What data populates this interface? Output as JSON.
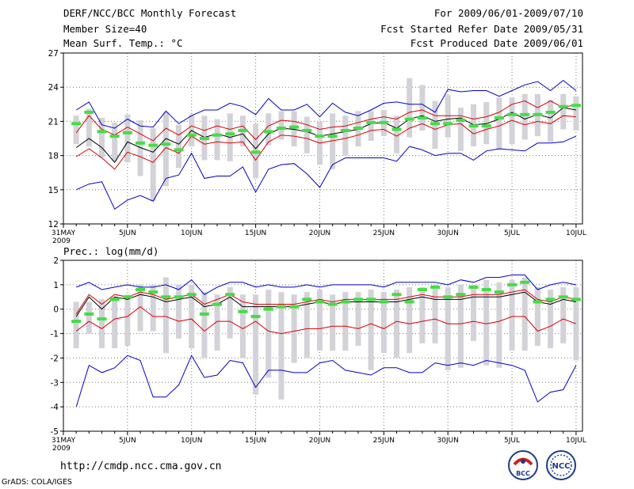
{
  "header": {
    "title": "DERF/NCC/BCC Monthly Forecast",
    "member_size": "Member Size=40",
    "variable": "Mean Surf. Temp.: °C",
    "period": "For 2009/06/01-2009/07/10",
    "started": "Fcst Started Refer Date 2009/05/31",
    "produced": "Fcst Produced Date 2009/06/01"
  },
  "footer": {
    "url": "http://cmdp.ncc.cma.gov.cn",
    "credit": "GrADS: COLA/IGES",
    "logo_bcc": "BCC",
    "logo_ncc": "NCC"
  },
  "colors": {
    "max_min_line": "#0000cc",
    "spread_line": "#dd0000",
    "mean_line": "#000000",
    "median_marker": "#44dd44",
    "box": "#d2d2d8",
    "grid": "#777777"
  },
  "chart_data": [
    {
      "type": "line",
      "title": "Mean Surf. Temp.: °C",
      "xlabel": "",
      "ylabel": "",
      "ylim": [
        12,
        27
      ],
      "yticks": [
        "12",
        "15",
        "18",
        "21",
        "24",
        "27"
      ],
      "yticks_values": [
        12,
        15,
        18,
        21,
        24,
        27
      ],
      "xtick_labels": [
        "31MAY",
        "5JUN",
        "10JUN",
        "15JUN",
        "20JUN",
        "25JUN",
        "30JUN",
        "5JUL",
        "10JUL"
      ],
      "xtick_days": [
        0,
        5,
        10,
        15,
        20,
        25,
        30,
        35,
        40
      ],
      "year_label": "2009",
      "grid": true,
      "x": [
        1,
        2,
        3,
        4,
        5,
        6,
        7,
        8,
        9,
        10,
        11,
        12,
        13,
        14,
        15,
        16,
        17,
        18,
        19,
        20,
        21,
        22,
        23,
        24,
        25,
        26,
        27,
        28,
        29,
        30,
        31,
        32,
        33,
        34,
        35,
        36,
        37,
        38,
        39,
        40
      ],
      "series": [
        {
          "name": "max",
          "values": [
            22.0,
            22.7,
            20.7,
            20.4,
            21.2,
            20.6,
            20.5,
            21.9,
            20.8,
            21.5,
            22.0,
            22.0,
            22.6,
            22.3,
            21.6,
            23.0,
            22.0,
            22.0,
            22.5,
            21.4,
            22.6,
            21.8,
            21.5,
            22.0,
            22.6,
            22.7,
            22.5,
            22.5,
            21.8,
            23.8,
            23.6,
            23.7,
            23.7,
            23.2,
            23.7,
            24.2,
            24.5,
            23.7,
            24.6,
            23.7
          ]
        },
        {
          "name": "upper",
          "values": [
            20.0,
            21.5,
            20.3,
            19.8,
            20.5,
            19.9,
            19.3,
            20.4,
            19.8,
            20.6,
            20.2,
            20.6,
            20.3,
            20.6,
            19.4,
            20.6,
            21.1,
            21.0,
            20.7,
            20.3,
            20.5,
            20.6,
            20.9,
            21.2,
            21.4,
            21.2,
            21.8,
            22.0,
            21.5,
            21.5,
            21.5,
            21.2,
            21.4,
            21.8,
            22.5,
            22.8,
            22.2,
            22.8,
            22.2,
            22.5
          ]
        },
        {
          "name": "mean",
          "values": [
            18.7,
            19.5,
            18.7,
            17.4,
            19.2,
            18.7,
            18.3,
            19.5,
            19.0,
            20.2,
            19.6,
            19.9,
            19.6,
            19.9,
            18.6,
            19.9,
            20.4,
            20.3,
            20.1,
            19.7,
            19.9,
            20.1,
            20.3,
            20.8,
            20.9,
            20.4,
            21.2,
            21.5,
            21.0,
            21.2,
            21.3,
            20.7,
            20.8,
            21.2,
            21.8,
            21.2,
            21.6,
            21.3,
            22.2,
            22.0
          ]
        },
        {
          "name": "lower",
          "values": [
            17.9,
            18.6,
            17.8,
            16.8,
            18.3,
            17.9,
            17.4,
            18.7,
            18.2,
            19.7,
            19.0,
            19.2,
            19.1,
            19.2,
            17.6,
            19.2,
            19.8,
            19.7,
            19.5,
            19.1,
            19.3,
            19.5,
            19.8,
            20.2,
            20.3,
            19.7,
            20.4,
            20.8,
            20.3,
            20.7,
            20.8,
            19.9,
            20.3,
            20.6,
            21.1,
            20.7,
            21.0,
            20.8,
            21.5,
            21.4
          ]
        },
        {
          "name": "min",
          "values": [
            15.0,
            15.5,
            15.7,
            13.3,
            14.1,
            14.5,
            14.0,
            16.0,
            16.3,
            18.2,
            16.0,
            16.2,
            16.2,
            17.0,
            14.8,
            16.8,
            17.2,
            17.3,
            16.4,
            15.2,
            17.2,
            17.8,
            17.8,
            17.8,
            17.8,
            17.5,
            18.8,
            18.5,
            18.0,
            18.2,
            18.2,
            17.6,
            18.4,
            18.6,
            18.5,
            18.4,
            19.1,
            19.1,
            19.2,
            19.7
          ]
        },
        {
          "name": "box_high",
          "values": [
            21.5,
            22.1,
            21.3,
            20.9,
            21.6,
            21.1,
            20.4,
            21.8,
            20.7,
            21.6,
            21.5,
            21.2,
            21.7,
            21.5,
            20.8,
            21.7,
            21.9,
            21.9,
            21.4,
            21.0,
            21.7,
            21.5,
            21.9,
            21.9,
            22.0,
            21.5,
            24.8,
            24.2,
            22.8,
            23.3,
            22.2,
            22.5,
            22.7,
            23.1,
            23.1,
            23.4,
            23.4,
            22.9,
            23.4,
            23.2
          ]
        },
        {
          "name": "box_low",
          "values": [
            19.0,
            18.8,
            17.8,
            17.5,
            17.4,
            16.2,
            14.0,
            15.3,
            16.9,
            18.8,
            17.6,
            17.6,
            17.5,
            18.8,
            16.0,
            18.9,
            19.4,
            18.8,
            18.2,
            17.2,
            16.8,
            18.0,
            18.8,
            19.3,
            19.7,
            18.2,
            19.6,
            20.2,
            18.6,
            19.6,
            18.4,
            18.8,
            19.0,
            18.5,
            19.0,
            19.4,
            19.7,
            19.2,
            20.3,
            20.2
          ]
        },
        {
          "name": "median",
          "values": [
            20.8,
            21.8,
            20.1,
            19.7,
            20.0,
            19.1,
            18.9,
            19.0,
            18.5,
            19.8,
            19.5,
            19.8,
            19.9,
            20.2,
            18.3,
            20.1,
            20.4,
            20.5,
            20.2,
            19.7,
            19.7,
            20.2,
            20.4,
            20.9,
            20.9,
            20.3,
            21.2,
            21.3,
            20.8,
            20.8,
            21.1,
            20.6,
            20.6,
            21.3,
            21.6,
            21.6,
            21.6,
            21.8,
            22.3,
            22.4
          ]
        }
      ]
    },
    {
      "type": "line",
      "title": "Prec.: log(mm/d)",
      "xlabel": "",
      "ylabel": "",
      "ylim": [
        -5,
        2
      ],
      "yticks": [
        "-5",
        "-4",
        "-3",
        "-2",
        "-1",
        "0",
        "1",
        "2"
      ],
      "yticks_values": [
        -5,
        -4,
        -3,
        -2,
        -1,
        0,
        1,
        2
      ],
      "xtick_labels": [
        "31MAY",
        "5JUN",
        "10JUN",
        "15JUN",
        "20JUN",
        "25JUN",
        "30JUN",
        "5JUL",
        "10JUL"
      ],
      "xtick_days": [
        0,
        5,
        10,
        15,
        20,
        25,
        30,
        35,
        40
      ],
      "year_label": "2009",
      "grid": true,
      "x": [
        1,
        2,
        3,
        4,
        5,
        6,
        7,
        8,
        9,
        10,
        11,
        12,
        13,
        14,
        15,
        16,
        17,
        18,
        19,
        20,
        21,
        22,
        23,
        24,
        25,
        26,
        27,
        28,
        29,
        30,
        31,
        32,
        33,
        34,
        35,
        36,
        37,
        38,
        39,
        40
      ],
      "series": [
        {
          "name": "max",
          "values": [
            0.9,
            1.1,
            0.8,
            0.9,
            1.0,
            0.9,
            0.9,
            1.0,
            0.8,
            1.2,
            0.6,
            0.9,
            1.1,
            1.1,
            0.9,
            1.0,
            0.9,
            0.9,
            1.0,
            0.9,
            1.0,
            1.0,
            1.0,
            1.0,
            0.9,
            1.1,
            1.1,
            1.1,
            1.1,
            1.0,
            1.2,
            1.1,
            1.3,
            1.3,
            1.4,
            1.4,
            0.8,
            1.0,
            1.1,
            1.0
          ]
        },
        {
          "name": "upper",
          "values": [
            -0.2,
            0.6,
            0.2,
            0.6,
            0.5,
            0.7,
            0.6,
            0.4,
            0.5,
            0.6,
            0.2,
            0.4,
            0.6,
            0.3,
            0.2,
            0.2,
            0.2,
            0.2,
            0.3,
            0.4,
            0.3,
            0.4,
            0.4,
            0.4,
            0.4,
            0.4,
            0.5,
            0.6,
            0.5,
            0.5,
            0.5,
            0.6,
            0.6,
            0.6,
            0.7,
            0.8,
            0.4,
            0.3,
            0.5,
            0.4
          ]
        },
        {
          "name": "mean",
          "values": [
            -0.3,
            0.5,
            0.0,
            0.5,
            0.4,
            0.6,
            0.5,
            0.3,
            0.4,
            0.5,
            0.1,
            0.2,
            0.5,
            0.1,
            0.1,
            0.1,
            0.1,
            0.1,
            0.2,
            0.3,
            0.2,
            0.3,
            0.3,
            0.3,
            0.3,
            0.3,
            0.4,
            0.5,
            0.4,
            0.4,
            0.4,
            0.5,
            0.5,
            0.5,
            0.6,
            0.7,
            0.3,
            0.2,
            0.4,
            0.3
          ]
        },
        {
          "name": "lower",
          "values": [
            -0.9,
            -0.5,
            -0.8,
            -0.4,
            -0.3,
            0.1,
            -0.3,
            -0.3,
            -0.5,
            -0.4,
            -0.9,
            -0.5,
            -0.5,
            -0.8,
            -0.5,
            -0.9,
            -1.0,
            -0.9,
            -0.8,
            -0.8,
            -0.7,
            -0.7,
            -0.8,
            -0.6,
            -0.8,
            -0.5,
            -0.6,
            -0.5,
            -0.4,
            -0.6,
            -0.6,
            -0.5,
            -0.6,
            -0.5,
            -0.3,
            -0.3,
            -0.9,
            -0.7,
            -0.4,
            -0.6
          ]
        },
        {
          "name": "min",
          "values": [
            -4.0,
            -2.3,
            -2.6,
            -2.4,
            -1.9,
            -2.1,
            -3.6,
            -3.6,
            -3.1,
            -1.9,
            -2.8,
            -2.7,
            -2.1,
            -2.2,
            -3.2,
            -2.5,
            -2.5,
            -2.6,
            -2.6,
            -2.2,
            -2.1,
            -2.5,
            -2.6,
            -2.7,
            -2.4,
            -2.4,
            -2.6,
            -2.6,
            -2.2,
            -2.3,
            -2.2,
            -2.3,
            -2.1,
            -2.2,
            -2.3,
            -2.5,
            -3.8,
            -3.4,
            -3.3,
            -2.3
          ]
        },
        {
          "name": "box_high",
          "values": [
            0.3,
            0.3,
            0.4,
            0.5,
            0.6,
            1.0,
            1.0,
            1.3,
            1.0,
            1.0,
            0.7,
            0.6,
            0.9,
            0.6,
            0.6,
            0.8,
            0.7,
            0.6,
            0.7,
            0.8,
            0.6,
            0.7,
            0.7,
            0.8,
            0.7,
            0.8,
            0.9,
            0.9,
            1.0,
            0.9,
            1.0,
            1.0,
            1.2,
            1.1,
            1.2,
            1.3,
            0.9,
            0.8,
            0.9,
            0.9
          ]
        },
        {
          "name": "box_low",
          "values": [
            -1.6,
            -1.0,
            -1.6,
            -1.6,
            -1.5,
            -0.9,
            -0.9,
            -1.8,
            -1.2,
            -1.6,
            -2.0,
            -1.7,
            -1.2,
            -2.0,
            -3.5,
            -2.8,
            -3.7,
            -2.2,
            -2.0,
            -1.7,
            -1.7,
            -1.7,
            -1.5,
            -2.5,
            -1.8,
            -2.0,
            -1.8,
            -1.4,
            -1.4,
            -2.5,
            -2.4,
            -1.3,
            -2.3,
            -2.4,
            -1.7,
            -1.7,
            -1.5,
            -1.6,
            -1.4,
            -2.1
          ]
        },
        {
          "name": "median",
          "values": [
            -0.5,
            -0.2,
            -0.4,
            0.4,
            0.5,
            0.8,
            0.7,
            0.5,
            0.5,
            0.6,
            -0.2,
            0.2,
            0.6,
            -0.1,
            -0.3,
            0.0,
            0.1,
            0.1,
            0.4,
            0.3,
            0.2,
            0.3,
            0.4,
            0.4,
            0.3,
            0.6,
            0.3,
            0.8,
            0.9,
            0.5,
            0.6,
            0.9,
            0.8,
            0.7,
            1.0,
            1.1,
            0.3,
            0.4,
            0.5,
            0.4
          ]
        }
      ]
    }
  ]
}
